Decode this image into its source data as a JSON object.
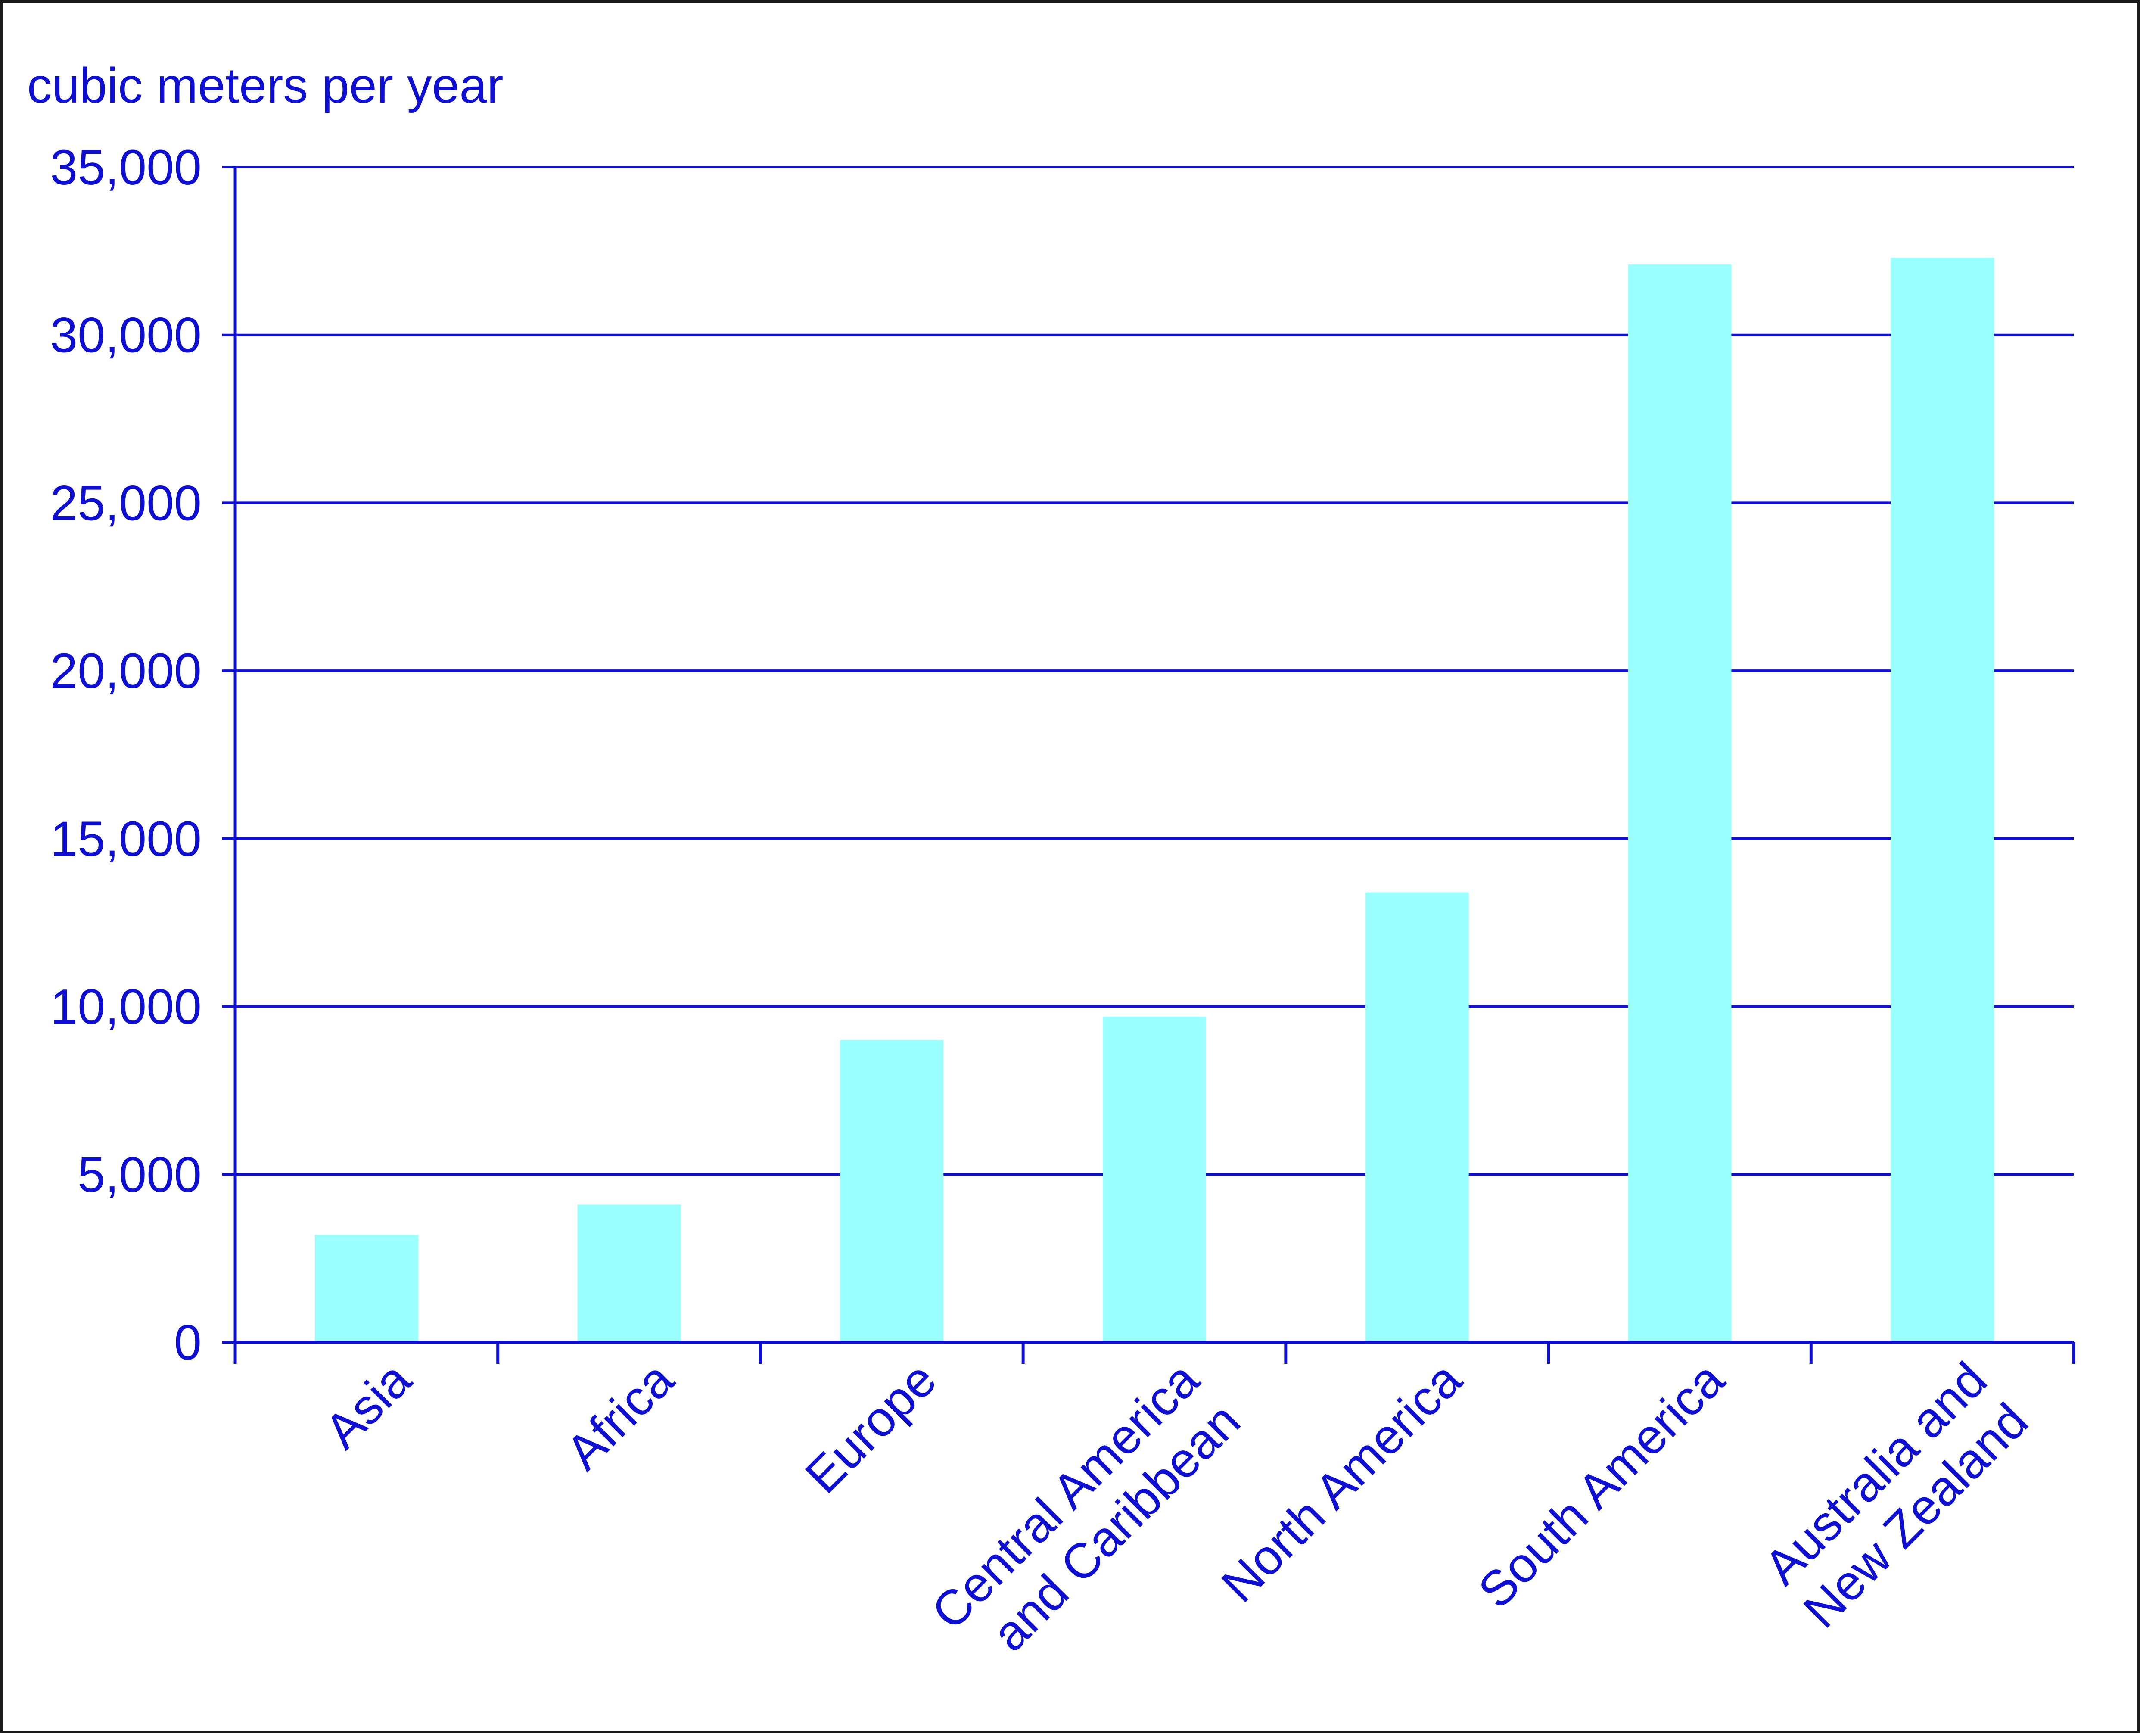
{
  "chart_data": {
    "type": "bar",
    "ylabel": "cubic meters per year",
    "categories": [
      [
        "Asia"
      ],
      [
        "Africa"
      ],
      [
        "Europe"
      ],
      [
        "Central America",
        "and Caribbean"
      ],
      [
        "North America"
      ],
      [
        "South America"
      ],
      [
        "Australia and",
        "New Zealand"
      ]
    ],
    "values": [
      3200,
      4100,
      9000,
      9700,
      13400,
      32100,
      32300
    ],
    "ylim": [
      0,
      35000
    ],
    "yticks": [
      0,
      5000,
      10000,
      15000,
      20000,
      25000,
      30000,
      35000
    ],
    "ytick_labels": [
      "0",
      "5,000",
      "10,000",
      "15,000",
      "20,000",
      "25,000",
      "30,000",
      "35,000"
    ],
    "grid": true,
    "colors": {
      "bar": "#9cffff",
      "axis": "#0f0fd2",
      "text": "#0f0fd2",
      "frame": "#1a1a1a"
    }
  }
}
